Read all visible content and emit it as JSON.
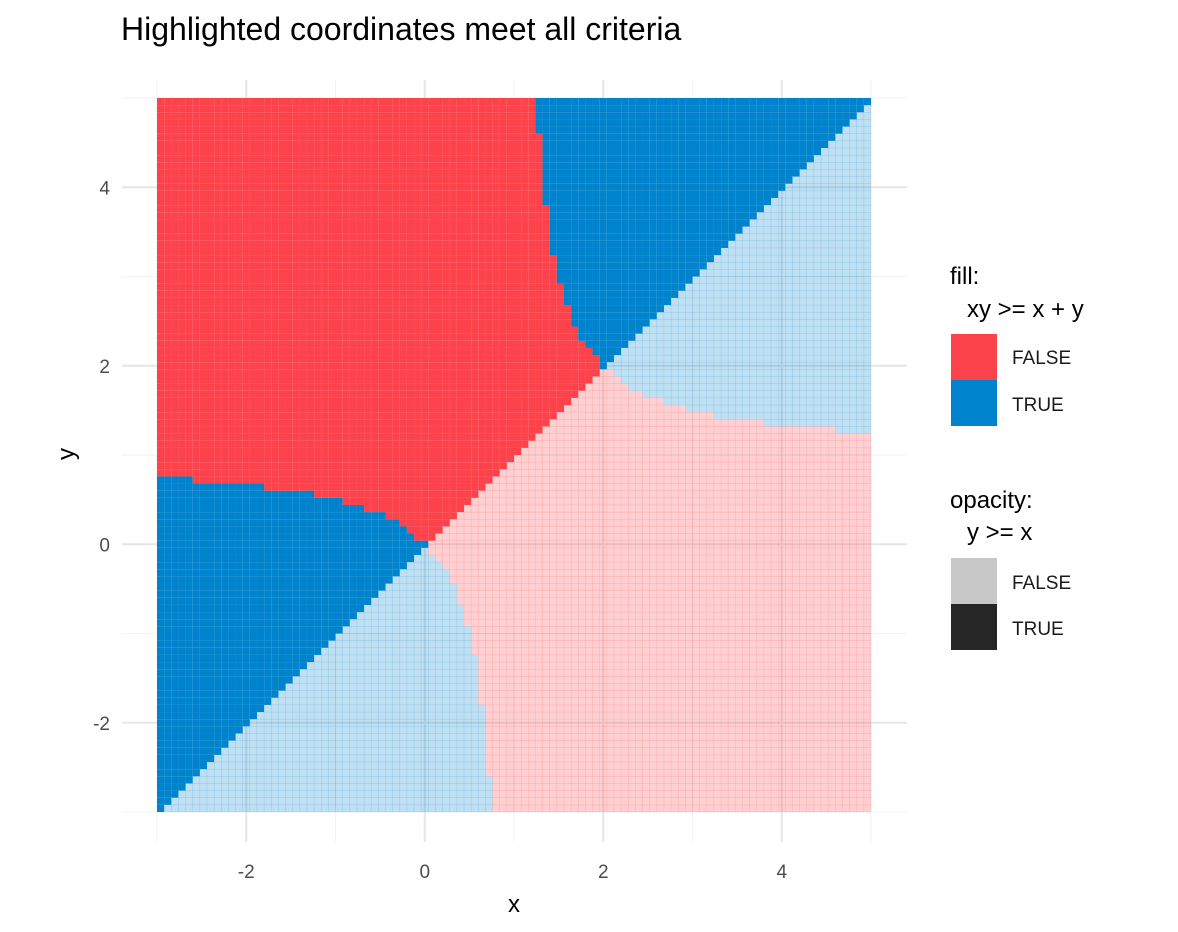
{
  "chart_data": {
    "type": "heatmap",
    "title": "Highlighted coordinates meet all criteria",
    "xlabel": "x",
    "ylabel": "y",
    "xlim": [
      -3,
      5
    ],
    "ylim": [
      -3,
      5
    ],
    "x_ticks": [
      -2,
      0,
      2,
      4
    ],
    "y_ticks": [
      -2,
      0,
      2,
      4
    ],
    "grid": true,
    "cell_step": 0.08,
    "region_definitions": {
      "fill": "xy >= x + y",
      "opacity": "y >= x"
    },
    "colors": {
      "FALSE": "#fc424b",
      "TRUE": "#0083cd",
      "opacity_FALSE": "#c8c8c8",
      "opacity_TRUE": "#262626",
      "faded_alpha": 0.25
    },
    "legends": [
      {
        "title_line1": "fill:",
        "title_line2": "xy >= x + y",
        "entries": [
          {
            "label": "FALSE",
            "color": "#fc424b"
          },
          {
            "label": "TRUE",
            "color": "#0083cd"
          }
        ]
      },
      {
        "title_line1": "opacity:",
        "title_line2": "y >= x",
        "entries": [
          {
            "label": "FALSE",
            "color": "#c8c8c8"
          },
          {
            "label": "TRUE",
            "color": "#262626"
          }
        ]
      }
    ],
    "legend_position": "right"
  }
}
